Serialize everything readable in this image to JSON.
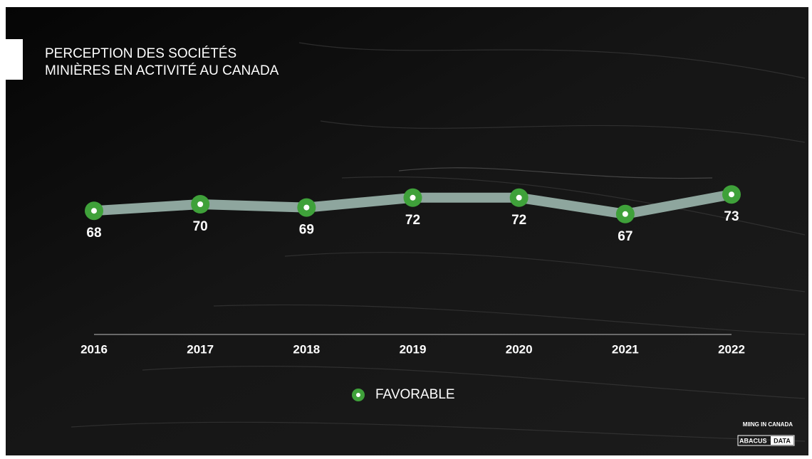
{
  "chart_data": {
    "type": "line",
    "title": [
      "PERCEPTION DES SOCIÉTÉS",
      "MINIÈRES EN ACTIVITÉ AU CANADA"
    ],
    "categories": [
      "2016",
      "2017",
      "2018",
      "2019",
      "2020",
      "2021",
      "2022"
    ],
    "series": [
      {
        "name": "FAVORABLE",
        "color": "#3fa13a",
        "line_color": "#8ea69e",
        "values": [
          68,
          70,
          69,
          72,
          72,
          67,
          73
        ]
      }
    ],
    "ylim": [
      0,
      100
    ],
    "legend": "bottom",
    "footer": {
      "tag": "MIING IN CANADA",
      "brand": [
        "ABACUS",
        "DATA"
      ]
    }
  }
}
